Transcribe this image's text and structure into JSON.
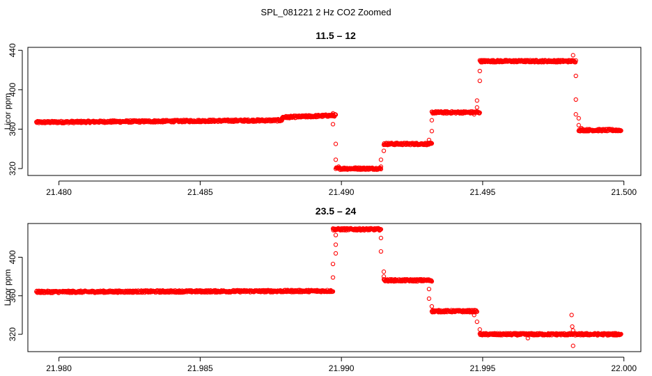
{
  "title": "SPL_081221  2 Hz CO2 Zoomed",
  "chart_data": [
    {
      "type": "scatter",
      "title": "11.5 – 12",
      "ylabel": "Licor ppm",
      "xlabel": "",
      "xlim": [
        21.4789,
        21.5006
      ],
      "ylim": [
        313,
        443
      ],
      "x_ticks": [
        21.48,
        21.485,
        21.49,
        21.495,
        21.5
      ],
      "x_tick_labels": [
        "21.480",
        "21.485",
        "21.490",
        "21.495",
        "21.500"
      ],
      "y_ticks": [
        320,
        360,
        400,
        440
      ],
      "y_tick_labels": [
        "320",
        "360",
        "400",
        "440"
      ],
      "marker_color": "#ff0000",
      "segments": [
        {
          "x0": 21.4792,
          "x1": 21.4879,
          "y0": 367,
          "y1": 369
        },
        {
          "x0": 21.4879,
          "x1": 21.4898,
          "y0": 372,
          "y1": 374
        },
        {
          "x0": 21.4898,
          "x1": 21.4914,
          "y0": 320,
          "y1": 320
        },
        {
          "x0": 21.4915,
          "x1": 21.4932,
          "y0": 345,
          "y1": 345
        },
        {
          "x0": 21.4932,
          "x1": 21.4949,
          "y0": 377,
          "y1": 377
        },
        {
          "x0": 21.4949,
          "x1": 21.4983,
          "y0": 429,
          "y1": 429
        },
        {
          "x0": 21.4984,
          "x1": 21.4999,
          "y0": 359,
          "y1": 359
        }
      ],
      "transition_points": [
        [
          21.4897,
          376
        ],
        [
          21.4897,
          365
        ],
        [
          21.4898,
          345
        ],
        [
          21.4898,
          329
        ],
        [
          21.4899,
          322
        ],
        [
          21.4914,
          322
        ],
        [
          21.4914,
          329
        ],
        [
          21.4915,
          338
        ],
        [
          21.4931,
          349
        ],
        [
          21.4932,
          358
        ],
        [
          21.4932,
          369
        ],
        [
          21.4947,
          375
        ],
        [
          21.4948,
          382
        ],
        [
          21.4948,
          389
        ],
        [
          21.4949,
          409
        ],
        [
          21.4949,
          419
        ],
        [
          21.4982,
          435
        ],
        [
          21.4983,
          414
        ],
        [
          21.4983,
          390
        ],
        [
          21.4983,
          375
        ],
        [
          21.4984,
          371
        ],
        [
          21.4984,
          364
        ],
        [
          21.4985,
          361
        ]
      ]
    },
    {
      "type": "scatter",
      "title": "23.5 – 24",
      "ylabel": "Licor ppm",
      "xlabel": "",
      "xlim": [
        21.9789,
        22.0006
      ],
      "ylim": [
        302,
        435
      ],
      "x_ticks": [
        21.98,
        21.985,
        21.99,
        21.995,
        22.0
      ],
      "x_tick_labels": [
        "21.980",
        "21.985",
        "21.990",
        "21.995",
        "22.000"
      ],
      "y_ticks": [
        320,
        360,
        400
      ],
      "y_tick_labels": [
        "320",
        "360",
        "400"
      ],
      "marker_color": "#ff0000",
      "segments": [
        {
          "x0": 21.9792,
          "x1": 21.9897,
          "y0": 364,
          "y1": 365
        },
        {
          "x0": 21.9897,
          "x1": 21.9914,
          "y0": 429,
          "y1": 429
        },
        {
          "x0": 21.9915,
          "x1": 21.9932,
          "y0": 376,
          "y1": 376
        },
        {
          "x0": 21.9932,
          "x1": 21.9948,
          "y0": 344,
          "y1": 344
        },
        {
          "x0": 21.9949,
          "x1": 21.9999,
          "y0": 320,
          "y1": 320
        }
      ],
      "transition_points": [
        [
          21.9897,
          379
        ],
        [
          21.9897,
          393
        ],
        [
          21.9898,
          404
        ],
        [
          21.9898,
          413
        ],
        [
          21.9898,
          423
        ],
        [
          21.9914,
          420
        ],
        [
          21.9914,
          406
        ],
        [
          21.9915,
          385
        ],
        [
          21.9915,
          380
        ],
        [
          21.9931,
          367
        ],
        [
          21.9931,
          357
        ],
        [
          21.9932,
          349
        ],
        [
          21.9947,
          340
        ],
        [
          21.9948,
          333
        ],
        [
          21.9949,
          325
        ],
        [
          21.99815,
          340
        ],
        [
          21.99817,
          328
        ],
        [
          21.9982,
          324
        ],
        [
          21.9982,
          308
        ],
        [
          21.9966,
          316
        ]
      ]
    }
  ]
}
